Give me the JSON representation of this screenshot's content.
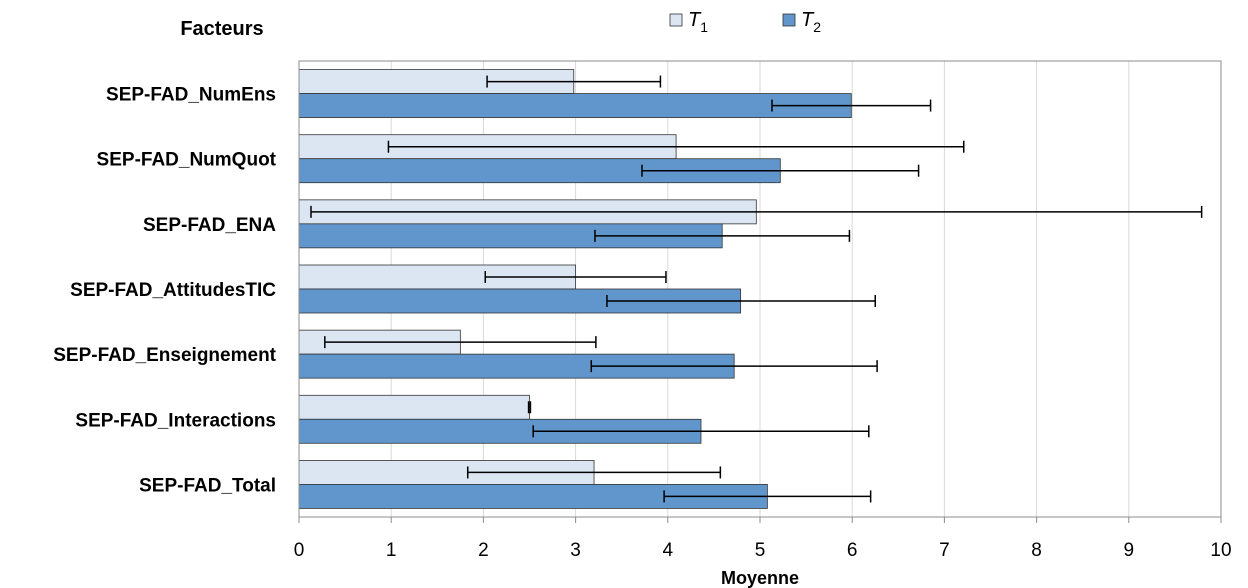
{
  "chart_data": {
    "type": "bar",
    "orientation": "horizontal",
    "title": "",
    "category_axis_title": "Facteurs",
    "xlabel": "Moyenne",
    "xlim": [
      0,
      10
    ],
    "xticks": [
      "0",
      "1",
      "2",
      "3",
      "4",
      "5",
      "6",
      "7",
      "8",
      "9",
      "10"
    ],
    "grid": "vertical",
    "legend_position": "top",
    "categories": [
      "SEP-FAD_NumEns",
      "SEP-FAD_NumQuot",
      "SEP-FAD_ENA",
      "SEP-FAD_AttitudesTIC",
      "SEP-FAD_Enseignement",
      "SEP-FAD_Interactions",
      "SEP-FAD_Total"
    ],
    "series": [
      {
        "name": "T",
        "name_subscript": "1",
        "color": "#dce6f2",
        "values": [
          2.98,
          4.09,
          4.96,
          3.0,
          1.75,
          2.5,
          3.2
        ],
        "error_low": [
          2.04,
          0.97,
          0.13,
          2.02,
          0.28,
          2.49,
          1.83
        ],
        "error_high": [
          3.92,
          7.21,
          9.79,
          3.98,
          3.22,
          2.51,
          4.57
        ]
      },
      {
        "name": "T",
        "name_subscript": "2",
        "color": "#6096cc",
        "values": [
          5.99,
          5.22,
          4.59,
          4.79,
          4.72,
          4.36,
          5.08
        ],
        "error_low": [
          5.13,
          3.72,
          3.21,
          3.34,
          3.17,
          2.54,
          3.96
        ],
        "error_high": [
          6.85,
          6.72,
          5.97,
          6.25,
          6.27,
          6.18,
          6.2
        ]
      }
    ]
  }
}
